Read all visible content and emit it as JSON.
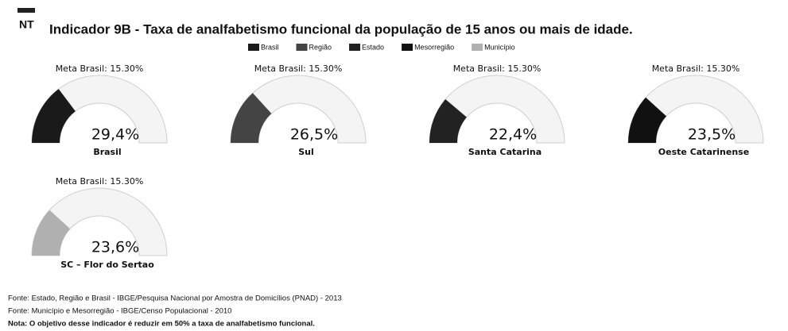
{
  "chart_data": {
    "type": "gauge",
    "logo": "NT",
    "title": "Indicador 9B - Taxa de analfabetismo funcional da população de 15 anos ou mais de idade.",
    "legend": [
      {
        "name": "Brasil",
        "color": "#1a1a1a"
      },
      {
        "name": "Região",
        "color": "#444444"
      },
      {
        "name": "Estado",
        "color": "#222222"
      },
      {
        "name": "Mesorregião",
        "color": "#111111"
      },
      {
        "name": "Município",
        "color": "#b0b0b0"
      }
    ],
    "target_label": "Meta Brasil: 15.30%",
    "categories": [
      "Brasil",
      "Sul",
      "Santa Catarina",
      "Oeste Catarinense",
      "SC – Flor do Sertao"
    ],
    "values": [
      29.4,
      26.5,
      22.4,
      23.5,
      23.6
    ],
    "value_labels": [
      "29,4%",
      "26,5%",
      "22,4%",
      "23,5%",
      "23,6%"
    ],
    "colors": [
      "#1a1a1a",
      "#444444",
      "#222222",
      "#111111",
      "#b0b0b0"
    ],
    "ylim": [
      0,
      100
    ],
    "notes": [
      "Fonte: Estado, Região e Brasil - IBGE/Pesquisa Nacional por Amostra de Domicílios (PNAD) - 2013",
      "Fonte: Município e Mesorregião - IBGE/Censo Populacional - 2010",
      "Nota: O objetivo desse indicador é reduzir em 50% a taxa de analfabetismo funcional."
    ]
  }
}
